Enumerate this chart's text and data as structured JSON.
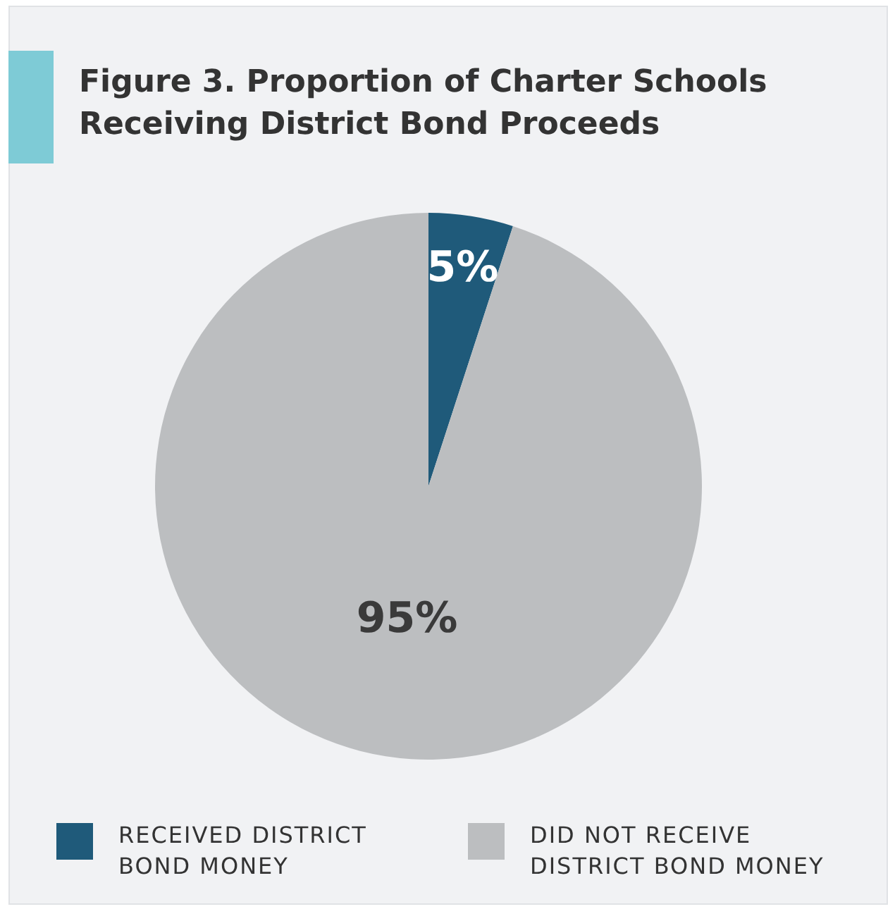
{
  "chart_data": {
    "type": "pie",
    "title": "Figure 3. Proportion of Charter Schools Receiving District Bond Proceeds",
    "categories": [
      "RECEIVED DISTRICT BOND MONEY",
      "DID NOT RECEIVE DISTRICT BOND MONEY"
    ],
    "values": [
      5,
      95
    ],
    "colors": [
      "#1f5a7a",
      "#bcbec0"
    ],
    "value_labels": [
      "5%",
      "95%"
    ],
    "legend": "bottom"
  }
}
